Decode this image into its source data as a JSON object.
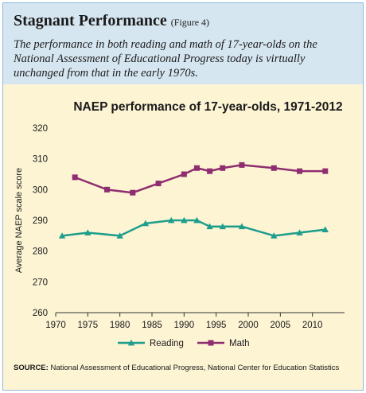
{
  "header": {
    "title": "Stagnant Performance",
    "figure_label": "(Figure 4)",
    "subtitle": "The performance in both reading and math of 17-year-olds on the National Assessment of Educational Progress today is virtually unchanged from that in the early 1970s."
  },
  "footer": {
    "source_label": "SOURCE:",
    "source_text": "National Assessment of Educational Progress, National Center for Education Statistics"
  },
  "colors": {
    "reading": "#1e9e8c",
    "math": "#8e2d6f",
    "header_bg": "#d6e6f1",
    "chart_bg": "#fdf4d4"
  },
  "chart_data": {
    "type": "line",
    "title": "NAEP performance of 17-year-olds, 1971-2012",
    "xlabel": "",
    "ylabel": "Average NAEP scale score",
    "xlim": [
      1970,
      2015
    ],
    "ylim": [
      260,
      320
    ],
    "xticks": [
      1970,
      1975,
      1980,
      1985,
      1990,
      1995,
      2000,
      2005,
      2010
    ],
    "yticks": [
      260,
      270,
      280,
      290,
      300,
      310,
      320
    ],
    "grid": false,
    "legend": "bottom",
    "series": [
      {
        "name": "Reading",
        "marker": "triangle",
        "x": [
          1971,
          1975,
          1980,
          1984,
          1988,
          1990,
          1992,
          1994,
          1996,
          1999,
          2004,
          2008,
          2012
        ],
        "values": [
          285,
          286,
          285,
          289,
          290,
          290,
          290,
          288,
          288,
          288,
          285,
          286,
          287
        ]
      },
      {
        "name": "Math",
        "marker": "square",
        "x": [
          1973,
          1978,
          1982,
          1986,
          1990,
          1992,
          1994,
          1996,
          1999,
          2004,
          2008,
          2012
        ],
        "values": [
          304,
          300,
          299,
          302,
          305,
          307,
          306,
          307,
          308,
          307,
          306,
          306
        ]
      }
    ]
  }
}
